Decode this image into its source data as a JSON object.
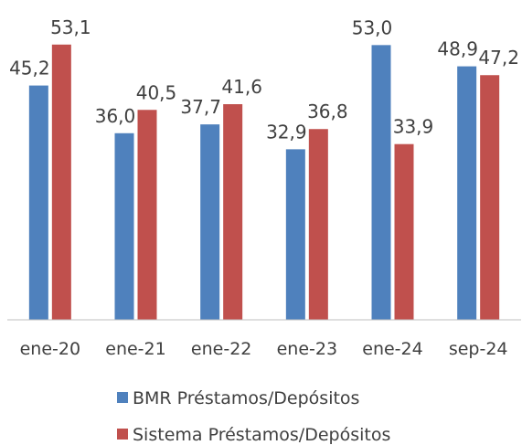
{
  "chart_data": {
    "type": "bar",
    "categories": [
      "ene-20",
      "ene-21",
      "ene-22",
      "ene-23",
      "ene-24",
      "sep-24"
    ],
    "series": [
      {
        "name": "BMR Préstamos/Depósitos",
        "color": "#4f81bd",
        "values": [
          45.2,
          36.0,
          37.7,
          32.9,
          53.0,
          48.9
        ],
        "value_labels": [
          "45,2",
          "36,0",
          "37,7",
          "32,9",
          "53,0",
          "48,9"
        ]
      },
      {
        "name": "Sistema Préstamos/Depósitos",
        "color": "#c0504d",
        "values": [
          53.1,
          40.5,
          41.6,
          36.8,
          33.9,
          47.2
        ],
        "value_labels": [
          "53,1",
          "40,5",
          "41,6",
          "36,8",
          "33,9",
          "47,2"
        ]
      }
    ],
    "ylim": [
      0,
      55
    ]
  }
}
